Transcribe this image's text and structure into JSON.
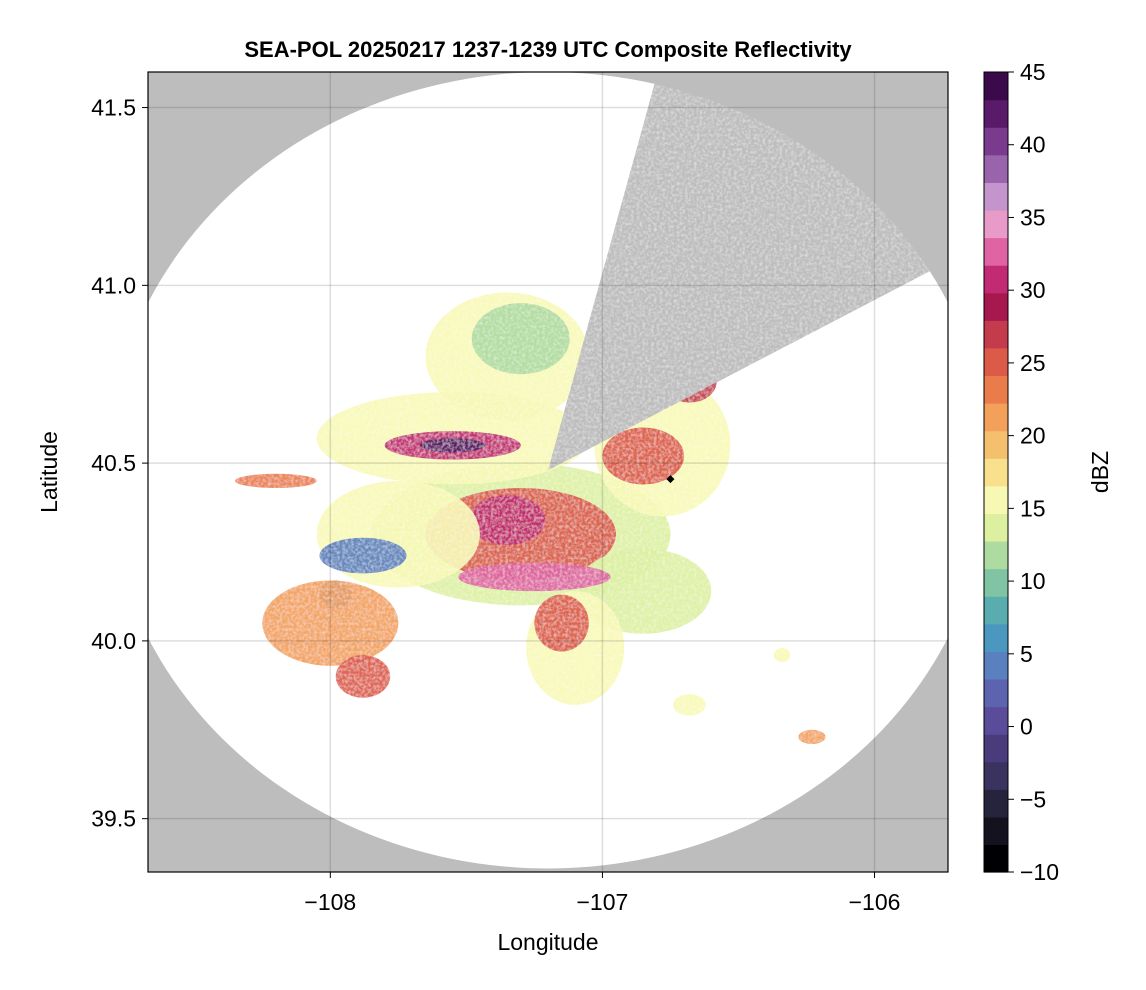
{
  "chart_data": {
    "type": "heatmap",
    "title": "SEA-POL 20250217 1237-1239 UTC Composite Reflectivity",
    "xlabel": "Longitude",
    "ylabel": "Latitude",
    "xlim": [
      -108.67,
      -105.73
    ],
    "ylim": [
      39.35,
      41.6
    ],
    "xticks": [
      -108,
      -107,
      -106
    ],
    "xtick_labels": [
      "−108",
      "−107",
      "−106"
    ],
    "yticks": [
      39.5,
      40.0,
      40.5,
      41.0,
      41.5
    ],
    "ytick_labels": [
      "39.5",
      "40.0",
      "40.5",
      "41.0",
      "41.5"
    ],
    "grid": true,
    "background_color": "#bdbdbd",
    "radar": {
      "center_lon": -107.2,
      "center_lat": 40.48,
      "range_lon_half_width": 1.62,
      "range_lat_half_width": 1.12,
      "blocked_sector_deg_from_north": [
        14,
        60
      ]
    },
    "marker": {
      "lon": -106.75,
      "lat": 40.455,
      "color": "#000000"
    },
    "colorbar": {
      "label": "dBZ",
      "min": -10,
      "max": 45,
      "ticks": [
        -10,
        -5,
        0,
        5,
        10,
        15,
        20,
        25,
        30,
        35,
        40,
        45
      ],
      "tick_labels": [
        "−10",
        "−5",
        "0",
        "5",
        "10",
        "15",
        "20",
        "25",
        "30",
        "35",
        "40",
        "45"
      ],
      "colors": [
        "#000004",
        "#14121f",
        "#26233d",
        "#3a3360",
        "#4a3c7c",
        "#5a4c9a",
        "#5e63b0",
        "#5a80c0",
        "#4a98c0",
        "#5aadae",
        "#80c4a4",
        "#aedba0",
        "#dcf0a0",
        "#f7f8b4",
        "#f8e08c",
        "#f4c06e",
        "#f2a05a",
        "#ea7c4c",
        "#dc5a48",
        "#c43c4c",
        "#a6184e",
        "#c22a74",
        "#e064a4",
        "#e89ac8",
        "#c494cc",
        "#9a64ac",
        "#7a3a8e",
        "#5a1a6a",
        "#3a0a4a"
      ]
    },
    "echo_regions": [
      {
        "name": "main-core",
        "lon": -107.3,
        "lat": 40.3,
        "rlon": 0.55,
        "rlat": 0.2,
        "dbz": 14
      },
      {
        "name": "main-inner",
        "lon": -107.3,
        "lat": 40.3,
        "rlon": 0.35,
        "rlat": 0.13,
        "dbz": 25
      },
      {
        "name": "main-peak",
        "lon": -107.35,
        "lat": 40.34,
        "rlon": 0.14,
        "rlat": 0.07,
        "dbz": 30
      },
      {
        "name": "north-band",
        "lon": -107.55,
        "lat": 40.57,
        "rlon": 0.5,
        "rlat": 0.13,
        "dbz": 15
      },
      {
        "name": "north-band-core",
        "lon": -107.55,
        "lat": 40.55,
        "rlon": 0.25,
        "rlat": 0.04,
        "dbz": 31
      },
      {
        "name": "north-band-peak",
        "lon": -107.55,
        "lat": 40.55,
        "rlon": 0.12,
        "rlat": 0.02,
        "dbz": 42
      },
      {
        "name": "north-lobe",
        "lon": -107.35,
        "lat": 40.8,
        "rlon": 0.3,
        "rlat": 0.18,
        "dbz": 16
      },
      {
        "name": "north-lobe-green",
        "lon": -107.3,
        "lat": 40.85,
        "rlon": 0.18,
        "rlat": 0.1,
        "dbz": 12
      },
      {
        "name": "east-area",
        "lon": -106.78,
        "lat": 40.55,
        "rlon": 0.25,
        "rlat": 0.2,
        "dbz": 16
      },
      {
        "name": "east-area-core",
        "lon": -106.85,
        "lat": 40.52,
        "rlon": 0.15,
        "rlat": 0.08,
        "dbz": 25
      },
      {
        "name": "ne-cell",
        "lon": -106.68,
        "lat": 40.73,
        "rlon": 0.1,
        "rlat": 0.06,
        "dbz": 27
      },
      {
        "name": "southeast-arm",
        "lon": -106.85,
        "lat": 40.14,
        "rlon": 0.25,
        "rlat": 0.12,
        "dbz": 14
      },
      {
        "name": "south-arm",
        "lon": -107.1,
        "lat": 39.98,
        "rlon": 0.18,
        "rlat": 0.16,
        "dbz": 16
      },
      {
        "name": "south-arm-core",
        "lon": -107.15,
        "lat": 40.05,
        "rlon": 0.1,
        "rlat": 0.08,
        "dbz": 26
      },
      {
        "name": "south-band-core",
        "lon": -107.25,
        "lat": 40.18,
        "rlon": 0.28,
        "rlat": 0.04,
        "dbz": 32
      },
      {
        "name": "west-area",
        "lon": -107.75,
        "lat": 40.3,
        "rlon": 0.3,
        "rlat": 0.15,
        "dbz": 16
      },
      {
        "name": "west-blue",
        "lon": -107.88,
        "lat": 40.24,
        "rlon": 0.16,
        "rlat": 0.05,
        "dbz": 5
      },
      {
        "name": "west-blue-tail",
        "lon": -107.98,
        "lat": 40.13,
        "rlon": 0.06,
        "rlat": 0.04,
        "dbz": 5
      },
      {
        "name": "sw-cells",
        "lon": -108.0,
        "lat": 40.05,
        "rlon": 0.25,
        "rlat": 0.12,
        "dbz": 22
      },
      {
        "name": "sw-cells-south",
        "lon": -107.88,
        "lat": 39.9,
        "rlon": 0.1,
        "rlat": 0.06,
        "dbz": 25
      },
      {
        "name": "sw-band",
        "lon": -108.2,
        "lat": 40.45,
        "rlon": 0.15,
        "rlat": 0.02,
        "dbz": 24
      },
      {
        "name": "far-se-cell",
        "lon": -106.23,
        "lat": 39.73,
        "rlon": 0.05,
        "rlat": 0.02,
        "dbz": 21
      },
      {
        "name": "se-small-1",
        "lon": -106.68,
        "lat": 39.82,
        "rlon": 0.06,
        "rlat": 0.03,
        "dbz": 15
      },
      {
        "name": "se-small-2",
        "lon": -106.34,
        "lat": 39.96,
        "rlon": 0.03,
        "rlat": 0.02,
        "dbz": 16
      }
    ]
  }
}
